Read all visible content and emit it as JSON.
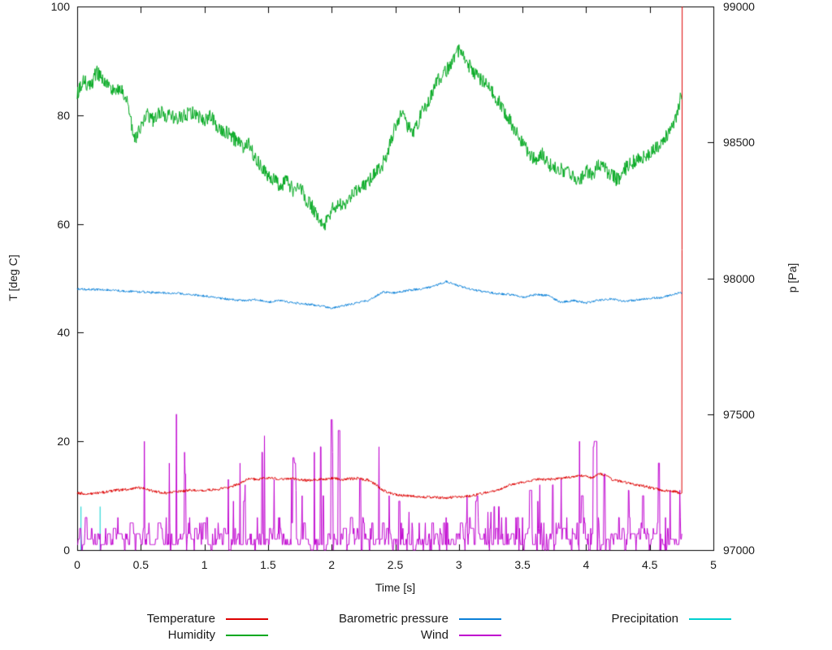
{
  "chart_data": {
    "type": "line",
    "title": "",
    "xlabel": "Time [s]",
    "ylabel_left": "T [deg C]",
    "ylabel_right": "p [Pa]",
    "x_range": [
      0,
      5
    ],
    "y_left_range": [
      0,
      100
    ],
    "y_right_range": [
      97000,
      99000
    ],
    "grid": false,
    "legend_position": "below-plot",
    "data_end_t": 4.755,
    "x_ticks": [
      "0",
      "0.5",
      "1",
      "1.5",
      "2",
      "2.5",
      "3",
      "3.5",
      "4",
      "4.5",
      "5"
    ],
    "x_tick_values": [
      0,
      0.5,
      1,
      1.5,
      2,
      2.5,
      3,
      3.5,
      4,
      4.5,
      5
    ],
    "y_left_ticks": [
      "0",
      "20",
      "40",
      "60",
      "80",
      "100"
    ],
    "y_left_tick_values": [
      0,
      20,
      40,
      60,
      80,
      100
    ],
    "y_right_ticks": [
      "97000",
      "97500",
      "98000",
      "98500",
      "99000"
    ],
    "y_right_tick_values": [
      97000,
      97500,
      98000,
      98500,
      99000
    ],
    "series": [
      {
        "name": "Temperature",
        "color": "#dd0000",
        "axis": "left",
        "style": "noisy-line",
        "noise": 0.25,
        "end_spike_to": 100,
        "keypoints": [
          [
            0,
            10.5
          ],
          [
            0.1,
            10.3
          ],
          [
            0.2,
            10.6
          ],
          [
            0.3,
            11
          ],
          [
            0.4,
            11.2
          ],
          [
            0.5,
            11.5
          ],
          [
            0.6,
            10.8
          ],
          [
            0.7,
            10.5
          ],
          [
            0.8,
            10.8
          ],
          [
            0.9,
            11
          ],
          [
            1.0,
            11
          ],
          [
            1.1,
            11.2
          ],
          [
            1.2,
            11.5
          ],
          [
            1.3,
            12.5
          ],
          [
            1.35,
            13.2
          ],
          [
            1.4,
            13
          ],
          [
            1.5,
            13.3
          ],
          [
            1.6,
            13
          ],
          [
            1.7,
            13.2
          ],
          [
            1.8,
            12.8
          ],
          [
            1.9,
            13
          ],
          [
            2.0,
            13.2
          ],
          [
            2.1,
            13
          ],
          [
            2.2,
            13.2
          ],
          [
            2.3,
            12.8
          ],
          [
            2.35,
            12
          ],
          [
            2.4,
            11
          ],
          [
            2.5,
            10.2
          ],
          [
            2.6,
            10
          ],
          [
            2.7,
            9.8
          ],
          [
            2.8,
            9.7
          ],
          [
            2.9,
            9.6
          ],
          [
            3.0,
            9.8
          ],
          [
            3.1,
            10
          ],
          [
            3.2,
            10.5
          ],
          [
            3.3,
            11
          ],
          [
            3.4,
            12
          ],
          [
            3.5,
            12.5
          ],
          [
            3.6,
            13
          ],
          [
            3.7,
            13
          ],
          [
            3.8,
            13.2
          ],
          [
            3.9,
            13.5
          ],
          [
            3.95,
            13.8
          ],
          [
            4.0,
            13.5
          ],
          [
            4.05,
            13.2
          ],
          [
            4.1,
            14
          ],
          [
            4.15,
            13.8
          ],
          [
            4.2,
            13
          ],
          [
            4.3,
            12.5
          ],
          [
            4.4,
            12
          ],
          [
            4.5,
            11.5
          ],
          [
            4.6,
            11
          ],
          [
            4.7,
            10.8
          ],
          [
            4.755,
            10.3
          ]
        ]
      },
      {
        "name": "Humidity",
        "color": "#00a81f",
        "axis": "left",
        "style": "noisy-line",
        "noise": 1.3,
        "keypoints": [
          [
            0,
            84
          ],
          [
            0.05,
            86.5
          ],
          [
            0.1,
            85
          ],
          [
            0.15,
            88
          ],
          [
            0.2,
            86.5
          ],
          [
            0.25,
            85.5
          ],
          [
            0.3,
            84
          ],
          [
            0.35,
            85
          ],
          [
            0.4,
            82
          ],
          [
            0.45,
            75.5
          ],
          [
            0.5,
            78
          ],
          [
            0.55,
            80
          ],
          [
            0.6,
            79
          ],
          [
            0.65,
            80.5
          ],
          [
            0.7,
            80
          ],
          [
            0.8,
            79.5
          ],
          [
            0.9,
            80.5
          ],
          [
            1.0,
            79
          ],
          [
            1.05,
            80
          ],
          [
            1.1,
            78
          ],
          [
            1.2,
            76.5
          ],
          [
            1.3,
            74
          ],
          [
            1.35,
            75
          ],
          [
            1.4,
            72
          ],
          [
            1.45,
            70.5
          ],
          [
            1.5,
            69
          ],
          [
            1.55,
            68
          ],
          [
            1.6,
            67
          ],
          [
            1.65,
            68
          ],
          [
            1.7,
            66
          ],
          [
            1.75,
            67
          ],
          [
            1.8,
            64.5
          ],
          [
            1.85,
            63
          ],
          [
            1.9,
            61
          ],
          [
            1.95,
            60
          ],
          [
            2.0,
            62.5
          ],
          [
            2.05,
            64
          ],
          [
            2.1,
            63
          ],
          [
            2.15,
            65
          ],
          [
            2.2,
            66
          ],
          [
            2.3,
            68
          ],
          [
            2.4,
            71
          ],
          [
            2.45,
            74
          ],
          [
            2.5,
            78
          ],
          [
            2.55,
            80
          ],
          [
            2.6,
            78
          ],
          [
            2.65,
            77
          ],
          [
            2.7,
            80
          ],
          [
            2.75,
            82
          ],
          [
            2.8,
            85
          ],
          [
            2.85,
            87
          ],
          [
            2.9,
            88
          ],
          [
            2.95,
            90
          ],
          [
            3.0,
            92
          ],
          [
            3.05,
            90
          ],
          [
            3.1,
            88.5
          ],
          [
            3.15,
            87
          ],
          [
            3.2,
            86
          ],
          [
            3.3,
            83
          ],
          [
            3.4,
            79
          ],
          [
            3.5,
            75
          ],
          [
            3.55,
            73
          ],
          [
            3.6,
            72
          ],
          [
            3.65,
            73
          ],
          [
            3.7,
            71
          ],
          [
            3.8,
            70
          ],
          [
            3.9,
            69
          ],
          [
            3.95,
            68
          ],
          [
            4.0,
            70
          ],
          [
            4.05,
            69
          ],
          [
            4.1,
            71
          ],
          [
            4.15,
            70
          ],
          [
            4.2,
            69
          ],
          [
            4.25,
            68
          ],
          [
            4.3,
            70
          ],
          [
            4.35,
            71
          ],
          [
            4.4,
            72
          ],
          [
            4.5,
            73
          ],
          [
            4.55,
            74
          ],
          [
            4.6,
            75
          ],
          [
            4.65,
            77
          ],
          [
            4.7,
            79
          ],
          [
            4.755,
            84.5
          ]
        ]
      },
      {
        "name": "Barometric pressure",
        "color": "#0a80d8",
        "axis": "right",
        "style": "noisy-line",
        "noise": 4,
        "keypoints": [
          [
            0,
            97960
          ],
          [
            0.2,
            97958
          ],
          [
            0.4,
            97952
          ],
          [
            0.6,
            97948
          ],
          [
            0.8,
            97945
          ],
          [
            1.0,
            97935
          ],
          [
            1.2,
            97922
          ],
          [
            1.3,
            97918
          ],
          [
            1.4,
            97922
          ],
          [
            1.5,
            97912
          ],
          [
            1.6,
            97918
          ],
          [
            1.7,
            97910
          ],
          [
            1.8,
            97905
          ],
          [
            1.9,
            97900
          ],
          [
            2.0,
            97890
          ],
          [
            2.1,
            97900
          ],
          [
            2.2,
            97910
          ],
          [
            2.3,
            97920
          ],
          [
            2.4,
            97950
          ],
          [
            2.5,
            97946
          ],
          [
            2.6,
            97956
          ],
          [
            2.7,
            97960
          ],
          [
            2.8,
            97970
          ],
          [
            2.9,
            97988
          ],
          [
            3.0,
            97972
          ],
          [
            3.1,
            97960
          ],
          [
            3.2,
            97950
          ],
          [
            3.3,
            97944
          ],
          [
            3.4,
            97940
          ],
          [
            3.5,
            97930
          ],
          [
            3.6,
            97940
          ],
          [
            3.7,
            97936
          ],
          [
            3.8,
            97912
          ],
          [
            3.9,
            97918
          ],
          [
            4.0,
            97910
          ],
          [
            4.1,
            97920
          ],
          [
            4.2,
            97924
          ],
          [
            4.3,
            97916
          ],
          [
            4.4,
            97920
          ],
          [
            4.5,
            97926
          ],
          [
            4.6,
            97930
          ],
          [
            4.7,
            97944
          ],
          [
            4.755,
            97946
          ]
        ]
      },
      {
        "name": "Wind",
        "color": "#bf00cf",
        "axis": "left",
        "style": "spiky",
        "spike_prob": 0.1,
        "envelope": [
          [
            0,
            4
          ],
          [
            0.4,
            6
          ],
          [
            0.5,
            24
          ],
          [
            0.7,
            20
          ],
          [
            0.9,
            34
          ],
          [
            1.0,
            25
          ],
          [
            1.1,
            22
          ],
          [
            1.2,
            18
          ],
          [
            1.3,
            20
          ],
          [
            1.5,
            22
          ],
          [
            1.6,
            25
          ],
          [
            1.7,
            24
          ],
          [
            1.8,
            20
          ],
          [
            1.9,
            18
          ],
          [
            2.0,
            30
          ],
          [
            2.1,
            25
          ],
          [
            2.2,
            28
          ],
          [
            2.3,
            28
          ],
          [
            2.4,
            28
          ],
          [
            2.5,
            12
          ],
          [
            2.6,
            8
          ],
          [
            2.7,
            8
          ],
          [
            2.8,
            10
          ],
          [
            2.9,
            8
          ],
          [
            3.0,
            10
          ],
          [
            3.1,
            12
          ],
          [
            3.2,
            8
          ],
          [
            3.3,
            10
          ],
          [
            3.4,
            16
          ],
          [
            3.45,
            25
          ],
          [
            3.5,
            24
          ],
          [
            3.6,
            18
          ],
          [
            3.7,
            16
          ],
          [
            3.8,
            18
          ],
          [
            3.9,
            22
          ],
          [
            4.0,
            20
          ],
          [
            4.1,
            22
          ],
          [
            4.2,
            18
          ],
          [
            4.3,
            16
          ],
          [
            4.4,
            20
          ],
          [
            4.5,
            16
          ],
          [
            4.6,
            22
          ],
          [
            4.7,
            14
          ],
          [
            4.755,
            12
          ]
        ]
      },
      {
        "name": "Precipitation",
        "color": "#00d0d0",
        "axis": "left",
        "style": "spikes",
        "spikes": [
          [
            0.03,
            8
          ],
          [
            0.18,
            8
          ]
        ]
      }
    ]
  },
  "legend": {
    "items": [
      {
        "label": "Temperature",
        "color": "#dd0000"
      },
      {
        "label": "Barometric pressure",
        "color": "#0a80d8"
      },
      {
        "label": "Precipitation",
        "color": "#00d0d0"
      },
      {
        "label": "Humidity",
        "color": "#00a81f"
      },
      {
        "label": "Wind",
        "color": "#bf00cf"
      }
    ]
  }
}
